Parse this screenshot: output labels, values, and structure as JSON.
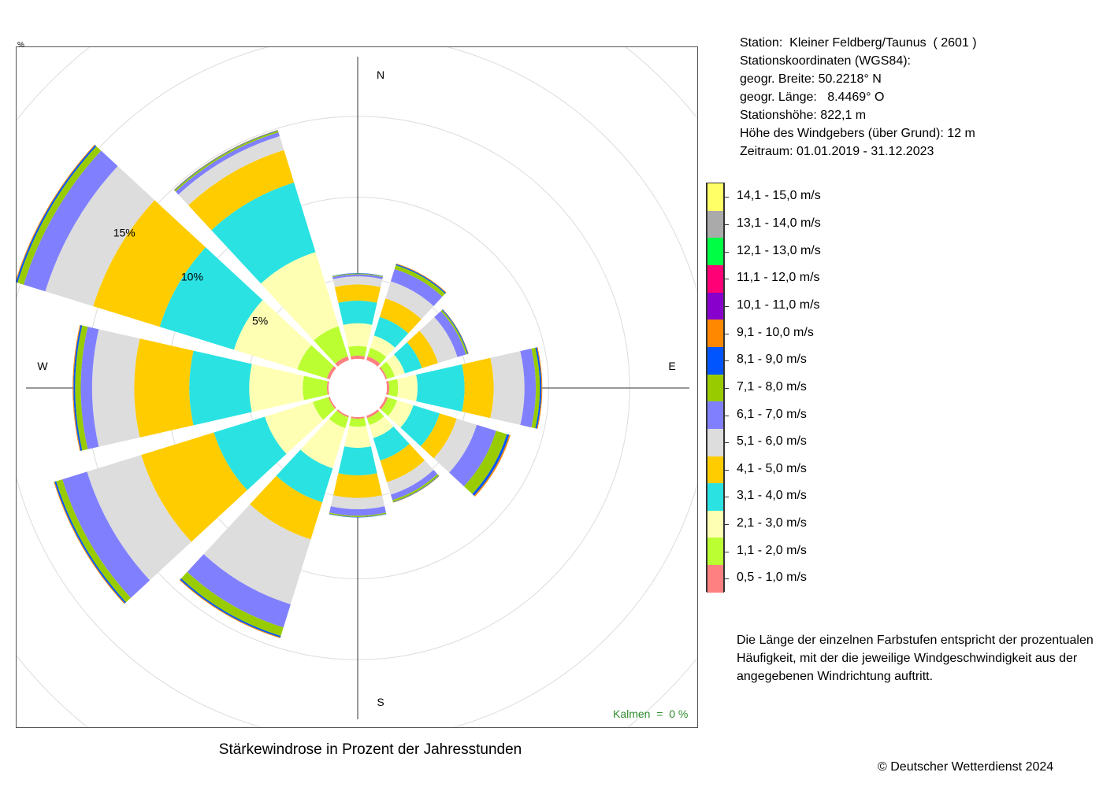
{
  "station": {
    "lines": [
      "Station:  Kleiner Feldberg/Taunus  ( 2601 )",
      "Stationskoordinaten (WGS84):",
      "geogr. Breite: 50.2218° N",
      "geogr. Länge:   8.4469° O",
      "Stationshöhe: 822,1 m",
      "Höhe des Windgebers (über Grund): 12 m",
      "Zeitraum: 01.01.2019 - 31.12.2023"
    ]
  },
  "legend": {
    "classes": [
      {
        "label": "14,1 - 15,0 m/s",
        "color": "#ffff66"
      },
      {
        "label": "13,1 - 14,0 m/s",
        "color": "#aaaaaa"
      },
      {
        "label": "12,1 - 13,0 m/s",
        "color": "#00ff44"
      },
      {
        "label": "11,1 - 12,0 m/s",
        "color": "#ff0077"
      },
      {
        "label": "10,1 - 11,0 m/s",
        "color": "#8800cc"
      },
      {
        "label": "9,1 - 10,0 m/s",
        "color": "#ff8800"
      },
      {
        "label": "8,1 - 9,0 m/s",
        "color": "#0055ff"
      },
      {
        "label": "7,1 - 8,0 m/s",
        "color": "#99cc00"
      },
      {
        "label": "6,1 - 7,0 m/s",
        "color": "#8080ff"
      },
      {
        "label": "5,1 - 6,0 m/s",
        "color": "#dddddd"
      },
      {
        "label": "4,1 - 5,0 m/s",
        "color": "#ffcc00"
      },
      {
        "label": "3,1 - 4,0 m/s",
        "color": "#2ae2e2"
      },
      {
        "label": "2,1 - 3,0 m/s",
        "color": "#ffffb3"
      },
      {
        "label": "1,1 - 2,0 m/s",
        "color": "#bbff33"
      },
      {
        "label": "0,5 - 1,0 m/s",
        "color": "#ff8080"
      }
    ]
  },
  "note": {
    "lines": [
      "Die Länge der einzelnen Farbstufen entspricht der prozentualen",
      "Häufigkeit, mit der die jeweilige Windgeschwindigkeit aus der",
      "angegebenen Windrichtung auftritt."
    ]
  },
  "title": "Stärkewindrose in Prozent der Jahresstunden",
  "copyright": "© Deutscher Wetterdienst  2024",
  "calm": "Kalmen  =  0 %",
  "corner_mark": "%",
  "chart_data": {
    "type": "wind-rose",
    "unit": "%",
    "ring_labels": [
      "5%",
      "10%",
      "15%"
    ],
    "ring_values": [
      5,
      10,
      15,
      20,
      25
    ],
    "directions": [
      "N",
      "E",
      "S",
      "W"
    ],
    "sector_angles": [
      0,
      30,
      60,
      90,
      120,
      150,
      180,
      210,
      240,
      270,
      300,
      330
    ],
    "speed_classes": [
      "0,5 - 1,0 m/s",
      "1,1 - 2,0 m/s",
      "2,1 - 3,0 m/s",
      "3,1 - 4,0 m/s",
      "4,1 - 5,0 m/s",
      "5,1 - 6,0 m/s",
      "6,1 - 7,0 m/s",
      "7,1 - 8,0 m/s",
      "8,1 - 9,0 m/s",
      "9,1 - 10,0 m/s"
    ],
    "cumulative_percent": [
      [
        0.2,
        0.8,
        2.2,
        3.6,
        4.6,
        5.1,
        5.23,
        5.28,
        5.3,
        5.3
      ],
      [
        0.25,
        0.8,
        1.6,
        2.8,
        4.0,
        5.1,
        5.9,
        6.15,
        6.22,
        6.26
      ],
      [
        0.1,
        0.6,
        1.25,
        2.35,
        3.4,
        4.65,
        5.2,
        5.3,
        5.35,
        5.37
      ],
      [
        0.15,
        0.7,
        1.9,
        4.8,
        6.6,
        8.5,
        9.2,
        9.45,
        9.55,
        9.6
      ],
      [
        0.15,
        0.75,
        1.8,
        3.5,
        4.6,
        5.9,
        7.15,
        7.85,
        8.0,
        8.08
      ],
      [
        0.15,
        0.6,
        1.45,
        2.9,
        4.3,
        5.1,
        5.45,
        5.57,
        5.6,
        5.62
      ],
      [
        0.1,
        0.6,
        1.9,
        3.6,
        5.0,
        5.7,
        6.1,
        6.18,
        6.2,
        6.2
      ],
      [
        0.1,
        0.8,
        3.4,
        5.6,
        8.0,
        12.2,
        13.7,
        14.25,
        14.35,
        14.4
      ],
      [
        0.1,
        1.1,
        4.2,
        7.5,
        12.2,
        15.7,
        17.3,
        17.7,
        17.8,
        17.85
      ],
      [
        0.1,
        1.6,
        4.9,
        8.6,
        12.0,
        14.6,
        15.3,
        15.65,
        15.75,
        15.8
      ],
      [
        0.2,
        2.1,
        6.2,
        11.0,
        15.3,
        18.4,
        19.8,
        20.2,
        20.3,
        20.35
      ],
      [
        0.25,
        2.2,
        7.0,
        11.5,
        13.6,
        14.5,
        14.75,
        14.85,
        14.88,
        14.9
      ]
    ],
    "calm_percent": 0
  }
}
